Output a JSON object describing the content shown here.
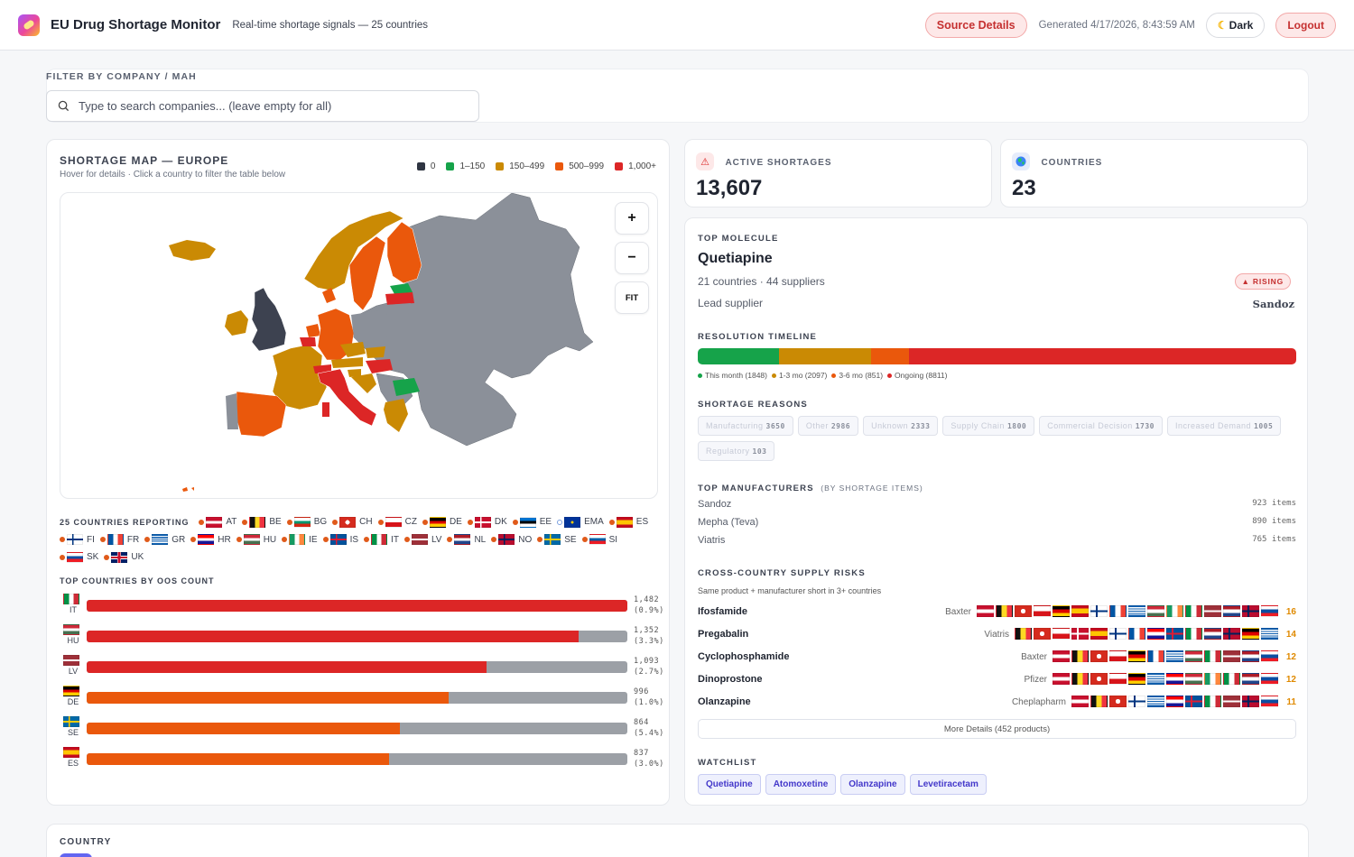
{
  "header": {
    "title": "EU Drug Shortage Monitor",
    "subtitle": "Real-time shortage signals — 25 countries",
    "source_button": "Source Details",
    "generated": "Generated 4/17/2026, 8:43:59 AM",
    "dark_button": "Dark",
    "logout_button": "Logout"
  },
  "filter": {
    "label": "FILTER BY COMPANY / MAH",
    "placeholder": "Type to search companies... (leave empty for all)"
  },
  "map": {
    "title": "SHORTAGE MAP — EUROPE",
    "subtitle": "Hover for details · Click a country to filter the table below",
    "legend": [
      {
        "label": "0",
        "color": "#2f3542"
      },
      {
        "label": "1–150",
        "color": "#16a34a"
      },
      {
        "label": "150–499",
        "color": "#ca8a04"
      },
      {
        "label": "500–999",
        "color": "#ea580c"
      },
      {
        "label": "1,000+",
        "color": "#dc2626"
      }
    ],
    "zoom_in": "+",
    "zoom_out": "−",
    "fit": "FIT"
  },
  "reporting": {
    "title": "25 COUNTRIES REPORTING",
    "countries": [
      "AT",
      "BE",
      "BG",
      "CH",
      "CZ",
      "DE",
      "DK",
      "EE",
      "EMA",
      "ES",
      "FI",
      "FR",
      "GR",
      "HR",
      "HU",
      "IE",
      "IS",
      "IT",
      "LV",
      "NL",
      "NO",
      "SE",
      "SI",
      "SK",
      "UK"
    ]
  },
  "top_countries": {
    "title": "TOP COUNTRIES BY OOS COUNT",
    "rows": [
      {
        "code": "IT",
        "value": "1,482",
        "pct": "(0.9%)",
        "fill": 1.0,
        "color": "#dc2626"
      },
      {
        "code": "HU",
        "value": "1,352",
        "pct": "(3.3%)",
        "fill": 0.91,
        "color": "#dc2626"
      },
      {
        "code": "LV",
        "value": "1,093",
        "pct": "(2.7%)",
        "fill": 0.74,
        "color": "#dc2626"
      },
      {
        "code": "DE",
        "value": "996",
        "pct": "(1.0%)",
        "fill": 0.67,
        "color": "#ea580c"
      },
      {
        "code": "SE",
        "value": "864",
        "pct": "(5.4%)",
        "fill": 0.58,
        "color": "#ea580c"
      },
      {
        "code": "ES",
        "value": "837",
        "pct": "(3.0%)",
        "fill": 0.56,
        "color": "#ea580c"
      }
    ]
  },
  "kpi": {
    "active_label": "ACTIVE SHORTAGES",
    "active_value": "13,607",
    "countries_label": "COUNTRIES",
    "countries_value": "23"
  },
  "molecule": {
    "section": "TOP MOLECULE",
    "name": "Quetiapine",
    "meta": "21 countries · 44 suppliers",
    "badge": "▲ RISING",
    "lead_label": "Lead supplier",
    "lead_value": "Sandoz"
  },
  "timeline": {
    "title": "RESOLUTION TIMELINE",
    "segments": [
      {
        "label": "This month (1848)",
        "value": 1848,
        "color": "#16a34a"
      },
      {
        "label": "1-3 mo (2097)",
        "value": 2097,
        "color": "#ca8a04"
      },
      {
        "label": "3-6 mo (851)",
        "value": 851,
        "color": "#ea580c"
      },
      {
        "label": "Ongoing (8811)",
        "value": 8811,
        "color": "#dc2626"
      }
    ]
  },
  "reasons": {
    "title": "SHORTAGE REASONS",
    "items": [
      {
        "label": "Manufacturing",
        "count": "3650"
      },
      {
        "label": "Other",
        "count": "2986"
      },
      {
        "label": "Unknown",
        "count": "2333"
      },
      {
        "label": "Supply Chain",
        "count": "1800"
      },
      {
        "label": "Commercial Decision",
        "count": "1730"
      },
      {
        "label": "Increased Demand",
        "count": "1005"
      },
      {
        "label": "Regulatory",
        "count": "103"
      }
    ]
  },
  "manufacturers": {
    "title": "TOP MANUFACTURERS",
    "title_suffix": "(BY SHORTAGE ITEMS)",
    "items": [
      {
        "name": "Sandoz",
        "count": "923 items"
      },
      {
        "name": "Mepha (Teva)",
        "count": "890 items"
      },
      {
        "name": "Viatris",
        "count": "765 items"
      }
    ]
  },
  "risks": {
    "title": "CROSS-COUNTRY SUPPLY RISKS",
    "subtitle": "Same product + manufacturer short in 3+ countries",
    "items": [
      {
        "name": "Ifosfamide",
        "mfr": "Baxter",
        "count": "16",
        "flags": [
          "AT",
          "BE",
          "CH",
          "CZ",
          "DE",
          "ES",
          "FI",
          "FR",
          "GR",
          "HU",
          "IE",
          "IT",
          "LV",
          "NL",
          "NO",
          "SK"
        ]
      },
      {
        "name": "Pregabalin",
        "mfr": "Viatris",
        "count": "14",
        "flags": [
          "BE",
          "CH",
          "CZ",
          "DK",
          "ES",
          "FI",
          "FR",
          "HR",
          "IS",
          "IT",
          "NL",
          "NO",
          "DE",
          "GR"
        ]
      },
      {
        "name": "Cyclophosphamide",
        "mfr": "Baxter",
        "count": "12",
        "flags": [
          "AT",
          "BE",
          "CH",
          "CZ",
          "DE",
          "FR",
          "GR",
          "HU",
          "IT",
          "LV",
          "NL",
          "SK"
        ]
      },
      {
        "name": "Dinoprostone",
        "mfr": "Pfizer",
        "count": "12",
        "flags": [
          "AT",
          "BE",
          "CH",
          "CZ",
          "DE",
          "GR",
          "HR",
          "HU",
          "IE",
          "IT",
          "NL",
          "SK"
        ]
      },
      {
        "name": "Olanzapine",
        "mfr": "Cheplapharm",
        "count": "11",
        "flags": [
          "AT",
          "BE",
          "CH",
          "FI",
          "GR",
          "HR",
          "IS",
          "IT",
          "LV",
          "NO",
          "SK"
        ]
      }
    ],
    "more_button": "More Details (452 products)"
  },
  "watchlist": {
    "title": "WATCHLIST",
    "items": [
      "Quetiapine",
      "Atomoxetine",
      "Olanzapine",
      "Levetiracetam"
    ]
  },
  "country_section": {
    "label": "COUNTRY"
  }
}
